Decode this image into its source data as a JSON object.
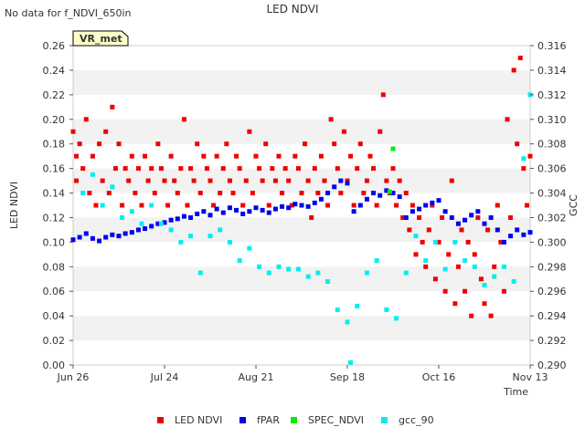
{
  "chart_data": {
    "type": "scatter",
    "title": "LED NDVI",
    "status_text": "No data for f_NDVI_650in",
    "site_label": "VR_met",
    "xlabel": "Time",
    "ylabel": "LED NDVI",
    "y2label": "GCC",
    "xlim": [
      0,
      140
    ],
    "ylim": [
      0.0,
      0.26
    ],
    "y2lim": [
      0.29,
      0.316
    ],
    "x_ticks": [
      {
        "day": 0,
        "label": "Jun 26"
      },
      {
        "day": 28,
        "label": "Jul 24"
      },
      {
        "day": 56,
        "label": "Aug 21"
      },
      {
        "day": 84,
        "label": "Sep 18"
      },
      {
        "day": 112,
        "label": "Oct 16"
      },
      {
        "day": 140,
        "label": "Nov 13"
      }
    ],
    "y_ticks": [
      "0.00",
      "0.02",
      "0.04",
      "0.06",
      "0.08",
      "0.10",
      "0.12",
      "0.14",
      "0.16",
      "0.18",
      "0.20",
      "0.22",
      "0.24",
      "0.26"
    ],
    "y2_ticks": [
      "0.290",
      "0.292",
      "0.294",
      "0.296",
      "0.298",
      "0.300",
      "0.302",
      "0.304",
      "0.306",
      "0.308",
      "0.310",
      "0.312",
      "0.314",
      "0.316"
    ],
    "legend": [
      {
        "name": "LED NDVI",
        "color": "#ee0000"
      },
      {
        "name": "fPAR",
        "color": "#0000ee"
      },
      {
        "name": "SPEC_NDVI",
        "color": "#00ee00"
      },
      {
        "name": "gcc_90",
        "color": "#00eeee"
      }
    ],
    "series": [
      {
        "name": "LED NDVI",
        "color": "#ee0000",
        "axis": "left",
        "x": [
          0,
          1,
          1,
          2,
          3,
          4,
          5,
          6,
          7,
          8,
          9,
          10,
          11,
          12,
          13,
          14,
          15,
          16,
          17,
          18,
          19,
          20,
          21,
          22,
          23,
          24,
          25,
          26,
          27,
          28,
          29,
          30,
          31,
          32,
          33,
          34,
          35,
          36,
          37,
          38,
          39,
          40,
          41,
          42,
          43,
          44,
          45,
          46,
          47,
          48,
          49,
          50,
          51,
          52,
          53,
          54,
          55,
          56,
          57,
          58,
          59,
          60,
          61,
          62,
          63,
          64,
          65,
          66,
          67,
          68,
          69,
          70,
          71,
          72,
          73,
          74,
          75,
          76,
          77,
          78,
          79,
          80,
          81,
          82,
          83,
          84,
          85,
          86,
          87,
          88,
          89,
          90,
          91,
          92,
          93,
          94,
          95,
          96,
          97,
          98,
          99,
          100,
          101,
          102,
          103,
          104,
          105,
          106,
          107,
          108,
          109,
          110,
          111,
          112,
          113,
          114,
          115,
          116,
          117,
          118,
          119,
          120,
          121,
          122,
          123,
          124,
          125,
          126,
          127,
          128,
          129,
          130,
          131,
          132,
          133,
          134,
          135,
          136,
          137,
          138,
          139,
          140
        ],
        "y": [
          0.19,
          0.17,
          0.15,
          0.18,
          0.16,
          0.2,
          0.14,
          0.17,
          0.13,
          0.18,
          0.15,
          0.19,
          0.14,
          0.21,
          0.16,
          0.18,
          0.13,
          0.16,
          0.15,
          0.17,
          0.14,
          0.16,
          0.13,
          0.17,
          0.15,
          0.16,
          0.14,
          0.18,
          0.16,
          0.15,
          0.13,
          0.17,
          0.15,
          0.14,
          0.16,
          0.2,
          0.13,
          0.16,
          0.15,
          0.18,
          0.14,
          0.17,
          0.16,
          0.15,
          0.13,
          0.17,
          0.14,
          0.16,
          0.18,
          0.15,
          0.14,
          0.17,
          0.16,
          0.13,
          0.15,
          0.19,
          0.14,
          0.17,
          0.16,
          0.15,
          0.18,
          0.13,
          0.16,
          0.15,
          0.17,
          0.14,
          0.16,
          0.15,
          0.13,
          0.17,
          0.16,
          0.14,
          0.18,
          0.15,
          0.12,
          0.16,
          0.14,
          0.17,
          0.15,
          0.13,
          0.2,
          0.18,
          0.16,
          0.14,
          0.19,
          0.15,
          0.17,
          0.13,
          0.16,
          0.18,
          0.14,
          0.15,
          0.17,
          0.16,
          0.13,
          0.19,
          0.22,
          0.15,
          0.14,
          0.16,
          0.13,
          0.15,
          0.12,
          0.14,
          0.11,
          0.13,
          0.09,
          0.12,
          0.1,
          0.08,
          0.11,
          0.13,
          0.07,
          0.1,
          0.12,
          0.06,
          0.09,
          0.15,
          0.05,
          0.08,
          0.11,
          0.06,
          0.1,
          0.04,
          0.09,
          0.12,
          0.07,
          0.05,
          0.11,
          0.04,
          0.08,
          0.13,
          0.1,
          0.06,
          0.2,
          0.12,
          0.24,
          0.18,
          0.25,
          0.16,
          0.13,
          0.17
        ]
      },
      {
        "name": "fPAR",
        "color": "#0000ee",
        "axis": "left",
        "x": [
          0,
          2,
          4,
          6,
          8,
          10,
          12,
          14,
          16,
          18,
          20,
          22,
          24,
          26,
          28,
          30,
          32,
          34,
          36,
          38,
          40,
          42,
          44,
          46,
          48,
          50,
          52,
          54,
          56,
          58,
          60,
          62,
          64,
          66,
          68,
          70,
          72,
          74,
          76,
          78,
          80,
          82,
          84,
          86,
          88,
          90,
          92,
          94,
          96,
          98,
          100,
          102,
          104,
          106,
          108,
          110,
          112,
          114,
          116,
          118,
          120,
          122,
          124,
          126,
          128,
          130,
          132,
          134,
          136,
          138,
          140
        ],
        "y": [
          0.102,
          0.104,
          0.107,
          0.103,
          0.101,
          0.104,
          0.106,
          0.105,
          0.107,
          0.108,
          0.11,
          0.111,
          0.113,
          0.115,
          0.116,
          0.118,
          0.119,
          0.121,
          0.12,
          0.123,
          0.125,
          0.122,
          0.127,
          0.124,
          0.128,
          0.126,
          0.123,
          0.125,
          0.128,
          0.126,
          0.124,
          0.127,
          0.129,
          0.128,
          0.131,
          0.13,
          0.129,
          0.132,
          0.135,
          0.14,
          0.145,
          0.15,
          0.148,
          0.125,
          0.13,
          0.135,
          0.14,
          0.138,
          0.142,
          0.14,
          0.137,
          0.12,
          0.125,
          0.127,
          0.13,
          0.132,
          0.134,
          0.125,
          0.12,
          0.115,
          0.118,
          0.122,
          0.125,
          0.115,
          0.12,
          0.11,
          0.1,
          0.105,
          0.11,
          0.106,
          0.108
        ]
      },
      {
        "name": "SPEC_NDVI",
        "color": "#00ee00",
        "axis": "left",
        "x": [
          97,
          98
        ],
        "y": [
          0.141,
          0.176
        ]
      },
      {
        "name": "gcc_90",
        "color": "#00eeee",
        "axis": "right",
        "x": [
          3,
          6,
          9,
          12,
          15,
          18,
          21,
          24,
          27,
          30,
          33,
          36,
          39,
          42,
          45,
          48,
          51,
          54,
          57,
          60,
          63,
          66,
          69,
          72,
          75,
          78,
          81,
          84,
          85,
          87,
          90,
          93,
          96,
          99,
          102,
          105,
          108,
          111,
          114,
          117,
          120,
          123,
          126,
          129,
          132,
          135,
          138,
          140
        ],
        "y": [
          0.304,
          0.3055,
          0.303,
          0.3045,
          0.302,
          0.3025,
          0.3015,
          0.303,
          0.3015,
          0.301,
          0.3,
          0.3005,
          0.2975,
          0.3005,
          0.301,
          0.3,
          0.2985,
          0.2995,
          0.298,
          0.2975,
          0.298,
          0.2978,
          0.2978,
          0.2972,
          0.2975,
          0.2968,
          0.2945,
          0.2935,
          0.2902,
          0.2948,
          0.2975,
          0.2985,
          0.2945,
          0.2938,
          0.2975,
          0.3005,
          0.2985,
          0.3,
          0.2978,
          0.3,
          0.2985,
          0.298,
          0.2965,
          0.2972,
          0.298,
          0.2968,
          0.3068,
          0.312
        ]
      }
    ]
  }
}
